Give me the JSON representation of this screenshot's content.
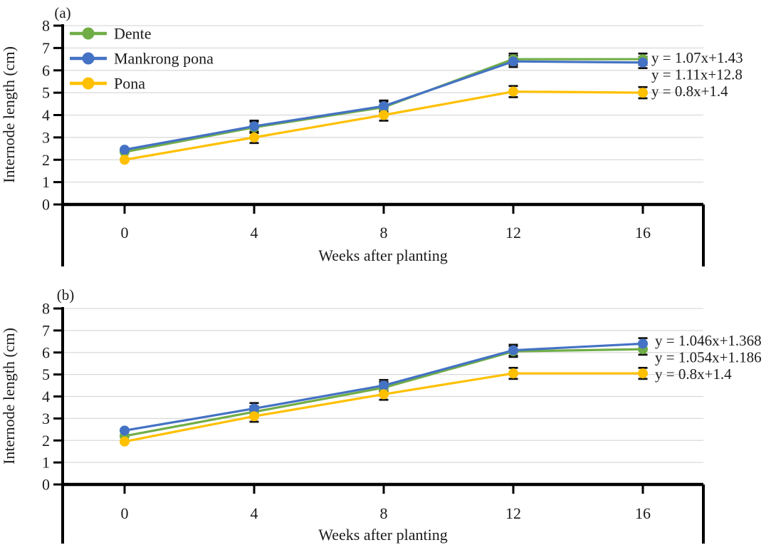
{
  "figure": {
    "background_color": "#ffffff",
    "text_color": "#1b1b1b",
    "axis_color": "#000000",
    "grid_color": "#d9d9d9",
    "error_bar_color": "#111111"
  },
  "chart_data": [
    {
      "type": "line",
      "panel_label": "(a)",
      "xlabel": "Weeks after planting",
      "ylabel": "Internode length (cm)",
      "x": [
        0,
        4,
        8,
        12,
        16
      ],
      "xticklabels": [
        "0",
        "4",
        "8",
        "12",
        "16"
      ],
      "ylim": [
        0,
        8
      ],
      "yticks": [
        0,
        1,
        2,
        3,
        4,
        5,
        6,
        7,
        8
      ],
      "grid": true,
      "show_legend": true,
      "legend_position": "top-left-inside",
      "series": [
        {
          "name": "Dente",
          "color": "#70AD47",
          "values": [
            2.35,
            3.45,
            4.35,
            6.5,
            6.5
          ],
          "error_bar": 0.25
        },
        {
          "name": "Mankrong pona",
          "color": "#4472C4",
          "values": [
            2.45,
            3.5,
            4.4,
            6.4,
            6.35
          ],
          "error_bar": 0.25
        },
        {
          "name": "Pona",
          "color": "#FFC000",
          "values": [
            2.0,
            3.0,
            4.0,
            5.05,
            5.0
          ],
          "error_bar": 0.25
        }
      ],
      "equations": [
        "y = 1.07x+1.43",
        "y = 1.11x+12.8",
        "y = 0.8x+1.4"
      ]
    },
    {
      "type": "line",
      "panel_label": "(b)",
      "xlabel": "Weeks after planting",
      "ylabel": "Internode length (cm)",
      "x": [
        0,
        4,
        8,
        12,
        16
      ],
      "xticklabels": [
        "0",
        "4",
        "8",
        "12",
        "16"
      ],
      "ylim": [
        0,
        8
      ],
      "yticks": [
        0,
        1,
        2,
        3,
        4,
        5,
        6,
        7,
        8
      ],
      "grid": true,
      "show_legend": false,
      "series": [
        {
          "name": "Dente",
          "color": "#70AD47",
          "values": [
            2.2,
            3.3,
            4.4,
            6.05,
            6.15
          ],
          "error_bar": 0.25
        },
        {
          "name": "Mankrong pona",
          "color": "#4472C4",
          "values": [
            2.45,
            3.45,
            4.5,
            6.1,
            6.4
          ],
          "error_bar": 0.25
        },
        {
          "name": "Pona",
          "color": "#FFC000",
          "values": [
            1.95,
            3.1,
            4.1,
            5.05,
            5.05
          ],
          "error_bar": 0.25
        }
      ],
      "equations": [
        "y = 1.046x+1.368",
        "y = 1.054x+1.186",
        "y = 0.8x+1.4"
      ]
    }
  ]
}
